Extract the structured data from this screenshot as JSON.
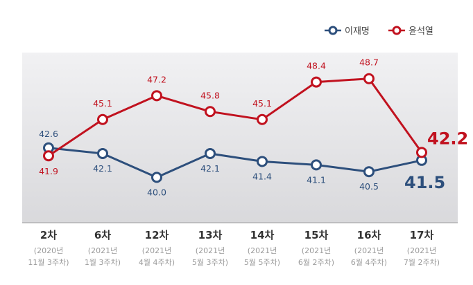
{
  "chart_data": {
    "type": "line",
    "categories": [
      "2차",
      "6차",
      "12차",
      "13차",
      "14차",
      "15차",
      "16차",
      "17차"
    ],
    "category_subtitles": [
      [
        "(2020년",
        "11월 3주차)"
      ],
      [
        "(2021년",
        "1월 3주차)"
      ],
      [
        "(2021년",
        "4월 4주차)"
      ],
      [
        "(2021년",
        "5월 3주차)"
      ],
      [
        "(2021년",
        "5월 5주차)"
      ],
      [
        "(2021년",
        "6월 2주차)"
      ],
      [
        "(2021년",
        "6월 4주차)"
      ],
      [
        "(2021년",
        "7월 2주차)"
      ]
    ],
    "series": [
      {
        "name": "이재명",
        "color": "#2d4f7c",
        "values": [
          42.6,
          42.1,
          40.0,
          42.1,
          41.4,
          41.1,
          40.5,
          41.5
        ],
        "labels": [
          "42.6",
          "42.1",
          "40.0",
          "42.1",
          "41.4",
          "41.1",
          "40.5",
          "41.5"
        ]
      },
      {
        "name": "윤석열",
        "color": "#c1121f",
        "values": [
          41.9,
          45.1,
          47.2,
          45.8,
          45.1,
          48.4,
          48.7,
          42.2
        ],
        "labels": [
          "41.9",
          "45.1",
          "47.2",
          "45.8",
          "45.1",
          "48.4",
          "48.7",
          "42.2"
        ]
      }
    ],
    "ylim": [
      36,
      51
    ],
    "legend": "top-right",
    "title": "",
    "xlabel": "",
    "ylabel": ""
  }
}
